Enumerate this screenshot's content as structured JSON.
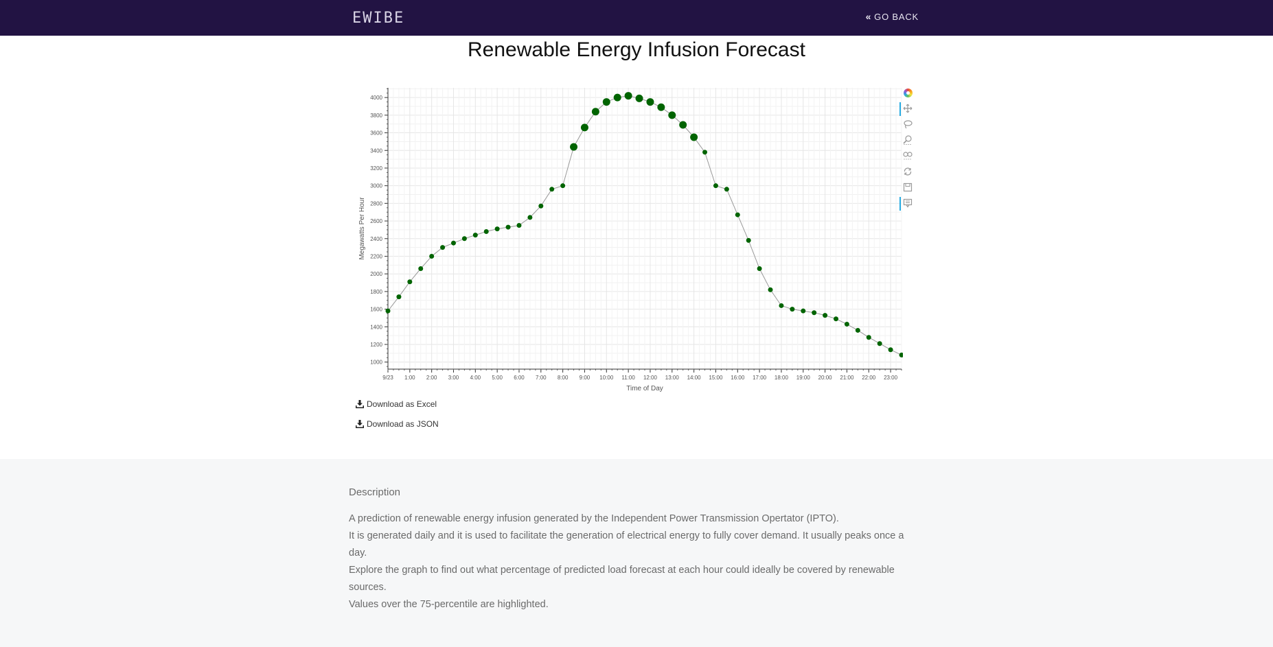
{
  "header": {
    "brand": "EWIBE",
    "go_back_label": "GO BACK"
  },
  "page_title": "Renewable Energy Infusion Forecast",
  "chart_data": {
    "type": "scatter",
    "title": "",
    "xlabel": "Time of Day",
    "ylabel": "Megawatts Per Hour",
    "x_tick_labels": [
      "9/23",
      "1:00",
      "2:00",
      "3:00",
      "4:00",
      "5:00",
      "6:00",
      "7:00",
      "8:00",
      "9:00",
      "10:00",
      "11:00",
      "12:00",
      "13:00",
      "14:00",
      "15:00",
      "16:00",
      "17:00",
      "18:00",
      "19:00",
      "20:00",
      "21:00",
      "22:00",
      "23:00"
    ],
    "y_ticks": [
      1000,
      1200,
      1400,
      1600,
      1800,
      2000,
      2200,
      2400,
      2600,
      2800,
      3000,
      3200,
      3400,
      3600,
      3800,
      4000
    ],
    "xlim": [
      0,
      23.5
    ],
    "ylim": [
      920,
      4110
    ],
    "grid": true,
    "marker_color": "#006400",
    "line_color": "#999999",
    "highlight_rule": "values over 75th percentile drawn larger",
    "x": [
      0,
      0.5,
      1,
      1.5,
      2,
      2.5,
      3,
      3.5,
      4,
      4.5,
      5,
      5.5,
      6,
      6.5,
      7,
      7.5,
      8,
      8.5,
      9,
      9.5,
      10,
      10.5,
      11,
      11.5,
      12,
      12.5,
      13,
      13.5,
      14,
      14.5,
      15,
      15.5,
      16,
      16.5,
      17,
      17.5,
      18,
      18.5,
      19,
      19.5,
      20,
      20.5,
      21,
      21.5,
      22,
      22.5,
      23,
      23.5
    ],
    "values": [
      1580,
      1740,
      1910,
      2060,
      2200,
      2300,
      2350,
      2400,
      2440,
      2480,
      2510,
      2530,
      2550,
      2640,
      2770,
      2960,
      3000,
      3440,
      3660,
      3840,
      3950,
      4000,
      4020,
      3990,
      3950,
      3890,
      3800,
      3690,
      3550,
      3380,
      3000,
      2960,
      2670,
      2380,
      2060,
      1820,
      1640,
      1600,
      1580,
      1560,
      1530,
      1490,
      1430,
      1360,
      1280,
      1210,
      1140,
      1080
    ],
    "highlighted": [
      false,
      false,
      false,
      false,
      false,
      false,
      false,
      false,
      false,
      false,
      false,
      false,
      false,
      false,
      false,
      false,
      false,
      true,
      true,
      true,
      true,
      true,
      true,
      true,
      true,
      true,
      true,
      true,
      true,
      false,
      false,
      false,
      false,
      false,
      false,
      false,
      false,
      false,
      false,
      false,
      false,
      false,
      false,
      false,
      false,
      false,
      false,
      false
    ]
  },
  "toolbar": {
    "tools": [
      "bokeh-logo-icon",
      "pan-icon",
      "lasso-select-icon",
      "box-zoom-icon",
      "wheel-zoom-icon",
      "reset-icon",
      "save-icon",
      "hover-icon"
    ]
  },
  "downloads": {
    "excel_label": "Download as Excel",
    "json_label": "Download as JSON"
  },
  "description": {
    "heading": "Description",
    "line1": "A prediction of renewable energy infusion generated by the Independent Power Transmission Opertator (IPTO).",
    "line2": "It is generated daily and it is used to facilitate the generation of electrical energy to fully cover demand. It usually peaks once a day.",
    "line3": "Explore the graph to find out what percentage of predicted load forecast at each hour could ideally be covered by renewable sources.",
    "line4": "Values over the 75-percentile are highlighted."
  }
}
